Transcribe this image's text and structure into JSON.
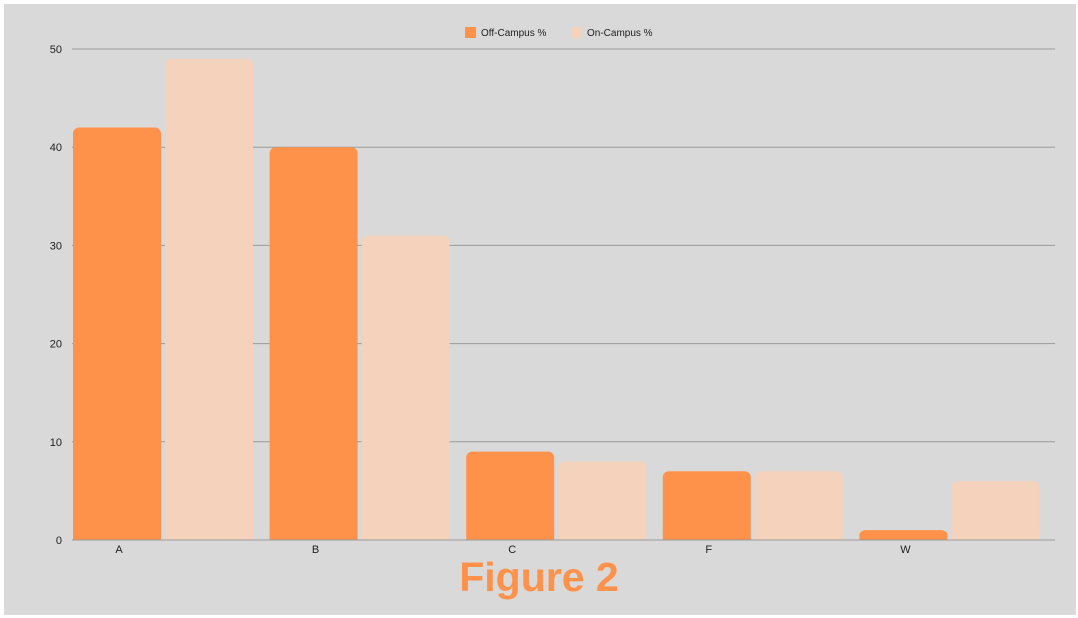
{
  "colors": {
    "background": "#d9d9d9",
    "gridline": "#9a9a9a",
    "off_campus": "#ff924a",
    "on_campus": "#f4d2bc",
    "caption": "#ff924a"
  },
  "caption": "Figure 2",
  "chart_data": {
    "type": "bar",
    "categories": [
      "A",
      "B",
      "C",
      "F",
      "W"
    ],
    "series": [
      {
        "name": "Off-Campus %",
        "values": [
          42,
          40,
          9,
          7,
          1
        ]
      },
      {
        "name": "On-Campus %",
        "values": [
          49,
          31,
          8,
          7,
          6
        ]
      }
    ],
    "title": "",
    "xlabel": "",
    "ylabel": "",
    "ylim": [
      0,
      50
    ],
    "yticks": [
      0,
      10,
      20,
      30,
      40,
      50
    ],
    "grid": true,
    "legend_position": "top-center"
  }
}
